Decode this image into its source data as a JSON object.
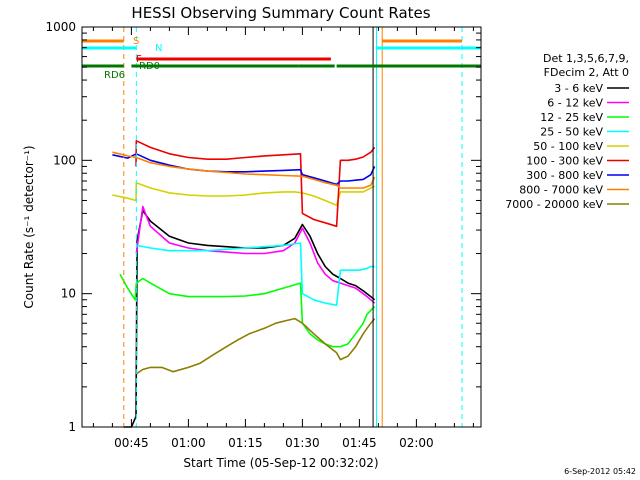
{
  "chart_data": {
    "type": "line",
    "title": "HESSI Observing Summary Count Rates",
    "xlabel": "Start Time (05-Sep-12 00:32:02)",
    "ylabel": "Count Rate (s⁻¹ detector⁻¹)",
    "yscale": "log",
    "ylim": [
      1,
      1000
    ],
    "xlim_minutes_of_day": [
      32,
      137
    ],
    "x_ticks": [
      "00:45",
      "01:00",
      "01:15",
      "01:30",
      "01:45",
      "02:00"
    ],
    "x_tick_minutes": [
      45,
      60,
      75,
      90,
      105,
      120
    ],
    "y_ticks": [
      "1",
      "10",
      "100",
      "1000"
    ],
    "y_tick_values": [
      1,
      10,
      100,
      1000
    ],
    "grid": false,
    "legend_placement": "right",
    "legend_header": [
      "Det 1,3,5,6,7,9,",
      "FDecim 2, Att 0"
    ],
    "footer_date": "6-Sep-2012 05:42",
    "flag_labels": {
      "S": "S",
      "N": "N",
      "F": "F",
      "RD6": "RD6",
      "RDO": "RD0"
    },
    "series": [
      {
        "name": "3 - 6 keV",
        "color": "#000000",
        "x": [
          43,
          45,
          46.2,
          46.5,
          48,
          50,
          55,
          60,
          65,
          70,
          75,
          80,
          85,
          88,
          90,
          92,
          94,
          96,
          98,
          100,
          102,
          104,
          106,
          107,
          108,
          109
        ],
        "y": [
          1,
          1,
          1.2,
          25,
          42,
          35,
          27,
          24,
          23,
          22.5,
          22,
          22,
          23,
          26,
          33,
          27,
          20,
          16,
          14,
          13,
          12,
          11.5,
          10.5,
          10,
          9.5,
          9
        ]
      },
      {
        "name": "6 - 12 keV",
        "color": "#ff00ff",
        "x": [
          46.3,
          48,
          50,
          55,
          60,
          65,
          70,
          75,
          80,
          85,
          88,
          90,
          92,
          94,
          96,
          98,
          100,
          102,
          104,
          106,
          107,
          108,
          109
        ],
        "y": [
          20,
          45,
          32,
          24,
          22,
          21,
          20.5,
          20,
          20,
          21,
          24,
          31,
          24,
          17,
          14,
          12.5,
          12,
          11.5,
          11,
          10,
          9.5,
          9,
          8.5
        ]
      },
      {
        "name": "12 - 25 keV",
        "color": "#00ff00",
        "x": [
          42,
          44,
          46,
          46.3,
          48,
          50,
          55,
          60,
          65,
          70,
          75,
          80,
          85,
          89.5,
          90,
          92,
          94,
          96,
          98,
          100,
          102,
          104,
          106,
          107,
          108,
          109
        ],
        "y": [
          14,
          11,
          9,
          12,
          13,
          12,
          10,
          9.5,
          9.5,
          9.5,
          9.6,
          10,
          11,
          12,
          6,
          5,
          4.5,
          4.2,
          4,
          4,
          4.2,
          5,
          6,
          7,
          7.5,
          8
        ]
      },
      {
        "name": "25 - 50 keV",
        "color": "#00ffff",
        "x": [
          46.3,
          50,
          55,
          60,
          65,
          70,
          75,
          80,
          85,
          89.5,
          90,
          93,
          96,
          99,
          100,
          102,
          105,
          107,
          108,
          109
        ],
        "y": [
          23,
          22,
          21,
          21,
          21,
          21.5,
          22,
          22.5,
          23,
          24,
          10,
          9,
          8.5,
          8.2,
          15,
          15,
          15,
          15.5,
          16,
          16
        ]
      },
      {
        "name": "50 - 100 keV",
        "color": "#d2d200",
        "x": [
          40,
          44,
          46.2,
          46.3,
          50,
          55,
          60,
          65,
          70,
          75,
          80,
          85,
          88,
          90,
          93,
          96,
          99,
          100,
          102,
          104,
          106,
          108,
          109
        ],
        "y": [
          55,
          52,
          50,
          68,
          62,
          57,
          55,
          54,
          54,
          55,
          57,
          58,
          58,
          57,
          54,
          50,
          46,
          58,
          58,
          58,
          58,
          62,
          64
        ]
      },
      {
        "name": "100 - 300 keV",
        "color": "#ee0000",
        "x": [
          46.2,
          46.3,
          50,
          55,
          60,
          65,
          70,
          75,
          80,
          85,
          89.5,
          90,
          93,
          96,
          99,
          100,
          102,
          104,
          106,
          108,
          109
        ],
        "y": [
          90,
          140,
          125,
          112,
          105,
          102,
          102,
          105,
          108,
          110,
          112,
          40,
          36,
          34,
          32,
          100,
          100,
          102,
          106,
          115,
          125
        ]
      },
      {
        "name": "300 - 800 keV",
        "color": "#0000ee",
        "x": [
          40,
          44,
          46.3,
          50,
          55,
          60,
          65,
          70,
          75,
          80,
          85,
          89.5,
          90,
          93,
          96,
          99,
          100,
          102,
          104,
          106,
          108,
          109
        ],
        "y": [
          110,
          104,
          112,
          100,
          92,
          86,
          83,
          82,
          82,
          83,
          84,
          85,
          78,
          74,
          70,
          66,
          70,
          70,
          71,
          72,
          78,
          90
        ]
      },
      {
        "name": "800 - 7000 keV",
        "color": "#ff8000",
        "x": [
          40,
          44,
          46.3,
          50,
          55,
          60,
          65,
          70,
          75,
          80,
          85,
          90,
          93,
          96,
          99,
          100,
          102,
          104,
          106,
          108,
          109
        ],
        "y": [
          115,
          108,
          105,
          96,
          90,
          86,
          83,
          81,
          79,
          78,
          77,
          76,
          72,
          68,
          65,
          62,
          62,
          62,
          62,
          65,
          75
        ]
      },
      {
        "name": "7000 - 20000 keV",
        "color": "#8c7d00",
        "x": [
          46.3,
          48,
          50,
          53,
          56,
          60,
          63,
          66,
          70,
          73,
          76,
          80,
          83,
          86,
          88,
          90,
          93,
          96,
          99,
          100,
          102,
          104,
          106,
          107,
          108,
          109
        ],
        "y": [
          2.5,
          2.7,
          2.8,
          2.8,
          2.6,
          2.8,
          3.0,
          3.4,
          4.0,
          4.5,
          5.0,
          5.5,
          6.0,
          6.3,
          6.5,
          6.0,
          5.0,
          4.2,
          3.6,
          3.2,
          3.4,
          4.0,
          5.0,
          5.5,
          6.0,
          6.5
        ]
      }
    ],
    "flags": [
      {
        "label": "S",
        "color": "#ff8000",
        "segments": [
          [
            32,
            43
          ],
          [
            111,
            132
          ]
        ]
      },
      {
        "label": "N",
        "color": "#00ffff",
        "segments": [
          [
            32,
            46.3
          ],
          [
            109.5,
            137
          ]
        ]
      },
      {
        "label": "F",
        "color": "#ee0000",
        "segments": [
          [
            46.3,
            97.5
          ]
        ]
      },
      {
        "label": "RD6",
        "color": "#007700",
        "segments": [
          [
            32,
            43
          ],
          [
            45,
            89
          ],
          [
            89,
            98.5
          ],
          [
            99,
            137
          ]
        ]
      }
    ],
    "vertical_markers": [
      {
        "color": "#ff8000",
        "style": "dashed",
        "x": 43
      },
      {
        "color": "#00ffff",
        "style": "dashed",
        "x": 46.3
      },
      {
        "color": "#00ffff",
        "style": "solid",
        "x": 109.5
      },
      {
        "color": "#ff8000",
        "style": "solid",
        "x": 111
      },
      {
        "color": "#000000",
        "style": "solid",
        "x": 108.6
      },
      {
        "color": "#00ffff",
        "style": "dashed",
        "x": 132
      }
    ]
  }
}
